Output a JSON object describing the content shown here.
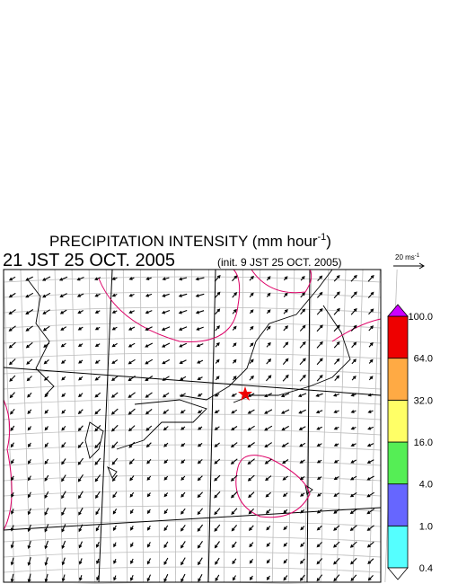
{
  "header": {
    "title": "PRECIPITATION INTENSITY (mm hour",
    "title_exponent": "-1",
    "title_close": ")",
    "valid_time": "21 JST 25 OCT. 2005",
    "init_time": "(init. 9 JST 25 OCT. 2005)"
  },
  "scale": {
    "label": "20 ms",
    "exponent": "-1"
  },
  "colorbar": {
    "levels": [
      {
        "value": 0.4,
        "label": "0.4"
      },
      {
        "value": 1,
        "label": "1.0"
      },
      {
        "value": 4,
        "label": "4.0"
      },
      {
        "value": 16,
        "label": "16.0"
      },
      {
        "value": 32,
        "label": "32.0"
      },
      {
        "value": 64,
        "label": "64.0"
      },
      {
        "value": 100,
        "label": "100.0"
      }
    ],
    "colors": [
      "#55ffff",
      "#6666ff",
      "#55ee55",
      "#ffff66",
      "#ffaa44",
      "#ee0000"
    ],
    "over_color": "#cc00ff",
    "under_color": "#ffffff"
  }
}
